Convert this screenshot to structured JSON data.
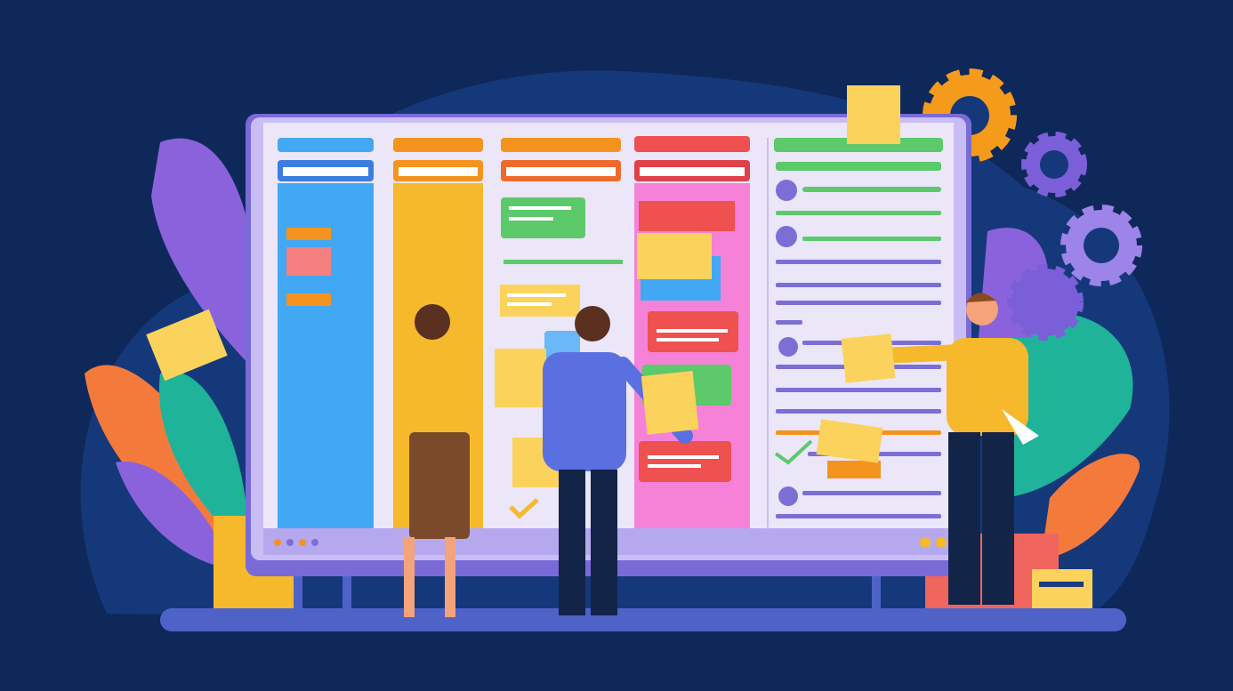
{
  "colors": {
    "background": "#0e285a",
    "blob": "#15387a",
    "board_frame": "#c9bdf5",
    "board_inner": "#ebe6f8",
    "column_blue": "#43a8f4",
    "column_yellow": "#f6b92b",
    "column_pink": "#f582d6",
    "header_orange": "#f5931f",
    "header_red": "#ef5050",
    "header_green": "#5cc96a",
    "list_line": "#7b6fd6",
    "floor": "#4e62c8",
    "gear_orange": "#f59b1c",
    "gear_purple": "#8e6fe0",
    "leaf_purple": "#8a63dc",
    "leaf_orange": "#f47a3c",
    "leaf_teal": "#1fb39a",
    "sticky_yellow": "#fbd35c"
  },
  "icons": [
    "gear-icon",
    "sticky-note-icon",
    "checkmark-icon",
    "avatar-icon"
  ]
}
